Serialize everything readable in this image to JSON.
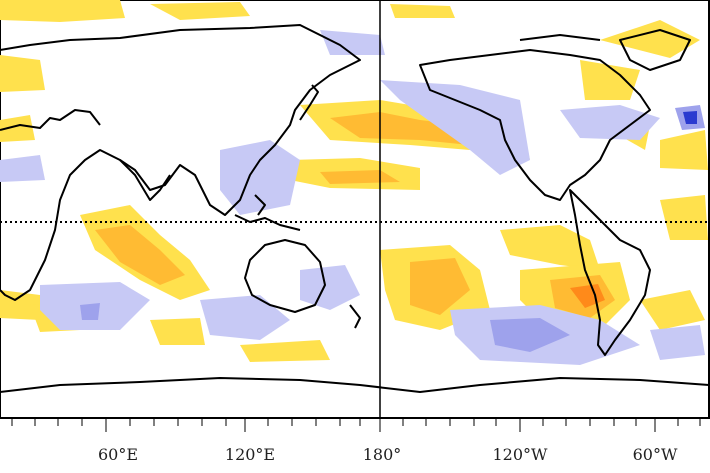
{
  "map": {
    "type": "global anomaly map",
    "projection": "equirectangular",
    "x_axis": {
      "ticks": [
        "60°E",
        "120°E",
        "180°",
        "120°W",
        "60°W"
      ]
    },
    "reference_lines": [
      "equator",
      "dateline"
    ],
    "colors": {
      "positive_light": "#ffe14d",
      "positive_mid": "#ffbb33",
      "positive_strong": "#ff8a1a",
      "negative_light": "#c7c9f5",
      "negative_mid": "#9ea2ec",
      "negative_strong": "#2a3ad0",
      "coastline": "#000000",
      "background": "#ffffff"
    }
  }
}
